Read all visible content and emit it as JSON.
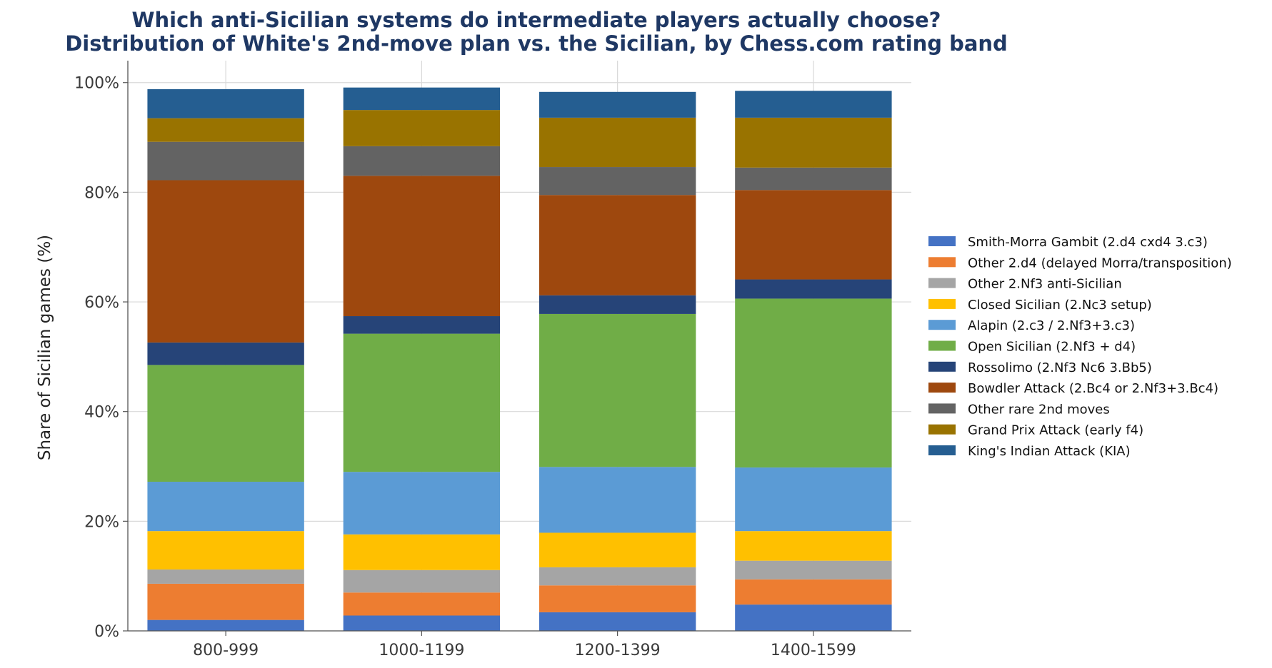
{
  "chart_data": {
    "type": "bar",
    "stacked": true,
    "title": "Which anti-Sicilian systems do intermediate players actually choose?",
    "subtitle": "Distribution of White's 2nd-move plan vs. the Sicilian, by Chess.com rating band",
    "xlabel": "",
    "ylabel": "Share of Sicilian games (%)",
    "ylim": [
      0,
      104
    ],
    "yticks": [
      0,
      20,
      40,
      60,
      80,
      100
    ],
    "ytick_labels": [
      "0%",
      "20%",
      "40%",
      "60%",
      "80%",
      "100%"
    ],
    "grid": true,
    "legend_position": "right",
    "categories": [
      "800-999",
      "1000-1199",
      "1200-1399",
      "1400-1599"
    ],
    "series": [
      {
        "name": "Smith-Morra Gambit (2.d4 cxd4 3.c3)",
        "color": "#4472c4",
        "values": [
          2.0,
          2.8,
          3.4,
          4.8
        ]
      },
      {
        "name": "Other 2.d4 (delayed Morra/transposition)",
        "color": "#ed7d31",
        "values": [
          6.6,
          4.2,
          4.9,
          4.6
        ]
      },
      {
        "name": "Other 2.Nf3 anti-Sicilian",
        "color": "#a5a5a5",
        "values": [
          2.6,
          4.1,
          3.3,
          3.4
        ]
      },
      {
        "name": "Closed Sicilian (2.Nc3 setup)",
        "color": "#ffc000",
        "values": [
          7.0,
          6.5,
          6.3,
          5.4
        ]
      },
      {
        "name": "Alapin (2.c3 / 2.Nf3+3.c3)",
        "color": "#5b9bd5",
        "values": [
          9.0,
          11.4,
          12.0,
          11.6
        ]
      },
      {
        "name": "Open Sicilian (2.Nf3 + d4)",
        "color": "#70ad47",
        "values": [
          21.3,
          25.2,
          27.9,
          30.8
        ]
      },
      {
        "name": "Rossolimo (2.Nf3 Nc6 3.Bb5)",
        "color": "#264478",
        "values": [
          4.1,
          3.2,
          3.4,
          3.5
        ]
      },
      {
        "name": "Bowdler Attack (2.Bc4 or 2.Nf3+3.Bc4)",
        "color": "#9e480e",
        "values": [
          29.6,
          25.6,
          18.3,
          16.3
        ]
      },
      {
        "name": "Other rare 2nd moves",
        "color": "#636363",
        "values": [
          7.0,
          5.4,
          5.1,
          4.1
        ]
      },
      {
        "name": "Grand Prix Attack (early f4)",
        "color": "#997300",
        "values": [
          4.3,
          6.6,
          9.0,
          9.1
        ]
      },
      {
        "name": "King's Indian Attack (KIA)",
        "color": "#255e91",
        "values": [
          5.3,
          4.1,
          4.7,
          4.9
        ]
      }
    ]
  }
}
